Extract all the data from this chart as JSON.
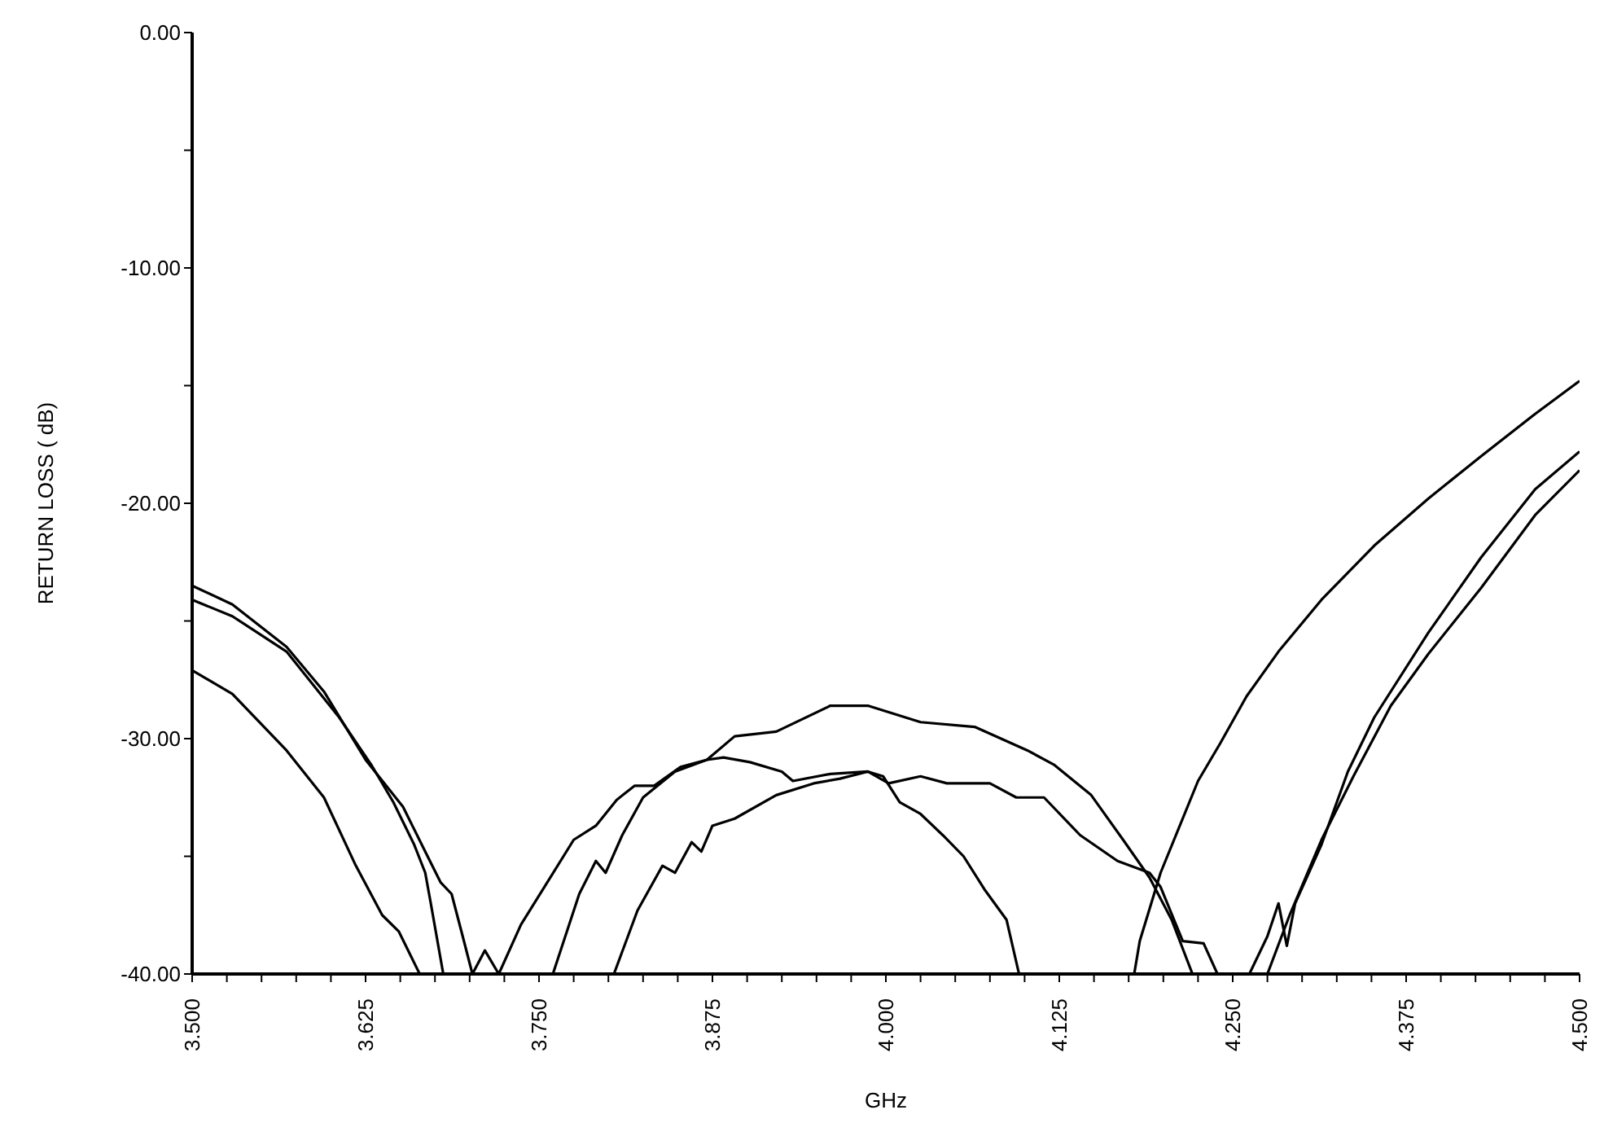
{
  "chart_data": {
    "type": "line",
    "xlabel": "GHz",
    "ylabel": "RETURN  LOSS  ( dB)",
    "xlim": [
      3.5,
      4.5
    ],
    "ylim": [
      -40,
      0
    ],
    "xticks": [
      {
        "value": 3.5,
        "label": "3.500"
      },
      {
        "value": 3.525,
        "label": null
      },
      {
        "value": 3.55,
        "label": null
      },
      {
        "value": 3.575,
        "label": null
      },
      {
        "value": 3.6,
        "label": null
      },
      {
        "value": 3.625,
        "label": "3.625"
      },
      {
        "value": 3.65,
        "label": null
      },
      {
        "value": 3.675,
        "label": null
      },
      {
        "value": 3.7,
        "label": null
      },
      {
        "value": 3.725,
        "label": null
      },
      {
        "value": 3.75,
        "label": "3.750"
      },
      {
        "value": 3.775,
        "label": null
      },
      {
        "value": 3.8,
        "label": null
      },
      {
        "value": 3.825,
        "label": null
      },
      {
        "value": 3.85,
        "label": null
      },
      {
        "value": 3.875,
        "label": "3.875"
      },
      {
        "value": 3.9,
        "label": null
      },
      {
        "value": 3.925,
        "label": null
      },
      {
        "value": 3.95,
        "label": null
      },
      {
        "value": 3.975,
        "label": null
      },
      {
        "value": 4.0,
        "label": "4.000"
      },
      {
        "value": 4.025,
        "label": null
      },
      {
        "value": 4.05,
        "label": null
      },
      {
        "value": 4.075,
        "label": null
      },
      {
        "value": 4.1,
        "label": null
      },
      {
        "value": 4.125,
        "label": "4.125"
      },
      {
        "value": 4.15,
        "label": null
      },
      {
        "value": 4.175,
        "label": null
      },
      {
        "value": 4.2,
        "label": null
      },
      {
        "value": 4.225,
        "label": null
      },
      {
        "value": 4.25,
        "label": "4.250"
      },
      {
        "value": 4.275,
        "label": null
      },
      {
        "value": 4.3,
        "label": null
      },
      {
        "value": 4.325,
        "label": null
      },
      {
        "value": 4.35,
        "label": null
      },
      {
        "value": 4.375,
        "label": "4.375"
      },
      {
        "value": 4.4,
        "label": null
      },
      {
        "value": 4.425,
        "label": null
      },
      {
        "value": 4.45,
        "label": null
      },
      {
        "value": 4.475,
        "label": null
      },
      {
        "value": 4.5,
        "label": "4.500"
      }
    ],
    "yticks": [
      {
        "value": 0,
        "label": "0.00"
      },
      {
        "value": -5,
        "label": null
      },
      {
        "value": -10,
        "label": "-10.00"
      },
      {
        "value": -15,
        "label": null
      },
      {
        "value": -20,
        "label": "-20.00"
      },
      {
        "value": -25,
        "label": null
      },
      {
        "value": -30,
        "label": "-30.00"
      },
      {
        "value": -35,
        "label": null
      },
      {
        "value": -40,
        "label": "-40.00"
      }
    ],
    "grid": false,
    "marker": "none",
    "line_style": "solid",
    "series": [
      {
        "color": "#000000",
        "x": [
          3.5,
          3.529,
          3.568,
          3.595,
          3.625,
          3.652,
          3.668,
          3.679,
          3.687,
          3.695,
          3.702,
          3.711,
          3.721,
          3.737,
          3.756,
          3.775,
          3.791,
          3.806,
          3.819,
          3.833,
          3.852,
          3.871,
          3.883,
          3.902,
          3.925,
          3.933,
          3.96,
          3.987,
          3.998,
          4.01,
          4.025,
          4.041,
          4.056,
          4.071,
          4.087,
          4.096,
          4.179,
          4.183,
          4.198,
          4.225,
          4.241,
          4.26,
          4.283,
          4.314,
          4.352,
          4.391,
          4.429,
          4.468,
          4.5
        ],
        "values": [
          -23.5,
          -24.3,
          -26.1,
          -28.0,
          -30.9,
          -32.9,
          -34.8,
          -36.1,
          -36.6,
          -38.4,
          -40,
          -39.0,
          -40,
          -37.9,
          -36.1,
          -34.3,
          -33.7,
          -32.6,
          -32.0,
          -32.0,
          -31.2,
          -30.9,
          -30.8,
          -31.0,
          -31.4,
          -31.8,
          -31.5,
          -31.4,
          -31.6,
          -32.7,
          -33.2,
          -34.1,
          -35.0,
          -36.4,
          -37.7,
          -40,
          -40,
          -38.6,
          -35.7,
          -31.8,
          -30.2,
          -28.2,
          -26.3,
          -24.1,
          -21.8,
          -19.8,
          -18.0,
          -16.2,
          -14.8
        ]
      },
      {
        "color": "#000000",
        "x": [
          3.5,
          3.529,
          3.568,
          3.606,
          3.629,
          3.645,
          3.66,
          3.668,
          3.672,
          3.681,
          3.76,
          3.779,
          3.791,
          3.798,
          3.81,
          3.825,
          3.848,
          3.871,
          3.891,
          3.921,
          3.96,
          3.987,
          4.025,
          4.064,
          4.102,
          4.121,
          4.148,
          4.171,
          4.19,
          4.206,
          4.221,
          4.262,
          4.275,
          4.283,
          4.289,
          4.295,
          4.314,
          4.333,
          4.352,
          4.391,
          4.429,
          4.468,
          4.5
        ],
        "values": [
          -24.1,
          -24.8,
          -26.3,
          -29.1,
          -31.1,
          -32.7,
          -34.5,
          -35.7,
          -37.0,
          -40,
          -40,
          -36.6,
          -35.2,
          -35.7,
          -34.1,
          -32.5,
          -31.4,
          -30.9,
          -29.9,
          -29.7,
          -28.6,
          -28.6,
          -29.3,
          -29.5,
          -30.5,
          -31.1,
          -32.4,
          -34.3,
          -35.9,
          -37.7,
          -40,
          -40,
          -38.4,
          -37.0,
          -38.8,
          -37.0,
          -34.5,
          -31.4,
          -29.1,
          -25.5,
          -22.3,
          -19.4,
          -17.8
        ]
      },
      {
        "color": "#000000",
        "x": [
          3.5,
          3.529,
          3.568,
          3.595,
          3.618,
          3.637,
          3.649,
          3.664,
          3.804,
          3.821,
          3.839,
          3.848,
          3.86,
          3.867,
          3.875,
          3.891,
          3.921,
          3.948,
          3.967,
          3.987,
          4.002,
          4.025,
          4.044,
          4.075,
          4.094,
          4.114,
          4.14,
          4.167,
          4.19,
          4.198,
          4.214,
          4.229,
          4.239,
          4.275,
          4.291,
          4.314,
          4.337,
          4.364,
          4.391,
          4.429,
          4.468,
          4.5
        ],
        "values": [
          -27.1,
          -28.1,
          -30.5,
          -32.5,
          -35.4,
          -37.5,
          -38.2,
          -40,
          -40,
          -37.3,
          -35.4,
          -35.7,
          -34.4,
          -34.8,
          -33.7,
          -33.4,
          -32.4,
          -31.9,
          -31.7,
          -31.4,
          -31.9,
          -31.6,
          -31.9,
          -31.9,
          -32.5,
          -32.5,
          -34.1,
          -35.2,
          -35.7,
          -36.3,
          -38.6,
          -38.7,
          -40,
          -40,
          -37.5,
          -34.3,
          -31.6,
          -28.6,
          -26.4,
          -23.6,
          -20.5,
          -18.6
        ]
      }
    ]
  }
}
